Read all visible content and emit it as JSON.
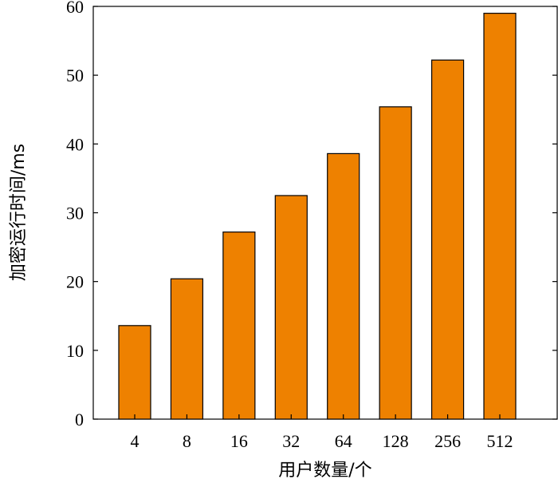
{
  "chart_data": {
    "type": "bar",
    "title": "",
    "xlabel": "用户数量/个",
    "ylabel": "加密运行时间/ms",
    "categories": [
      "4",
      "8",
      "16",
      "32",
      "64",
      "128",
      "256",
      "512"
    ],
    "values": [
      13.6,
      20.4,
      27.2,
      32.5,
      38.6,
      45.4,
      52.2,
      59.0
    ],
    "ylim": [
      0,
      60
    ],
    "yticks": [
      0,
      10,
      20,
      30,
      40,
      50,
      60
    ],
    "grid": false,
    "legend": "none",
    "bar_color": "#EE8100",
    "bar_edge_color": "#000000"
  }
}
